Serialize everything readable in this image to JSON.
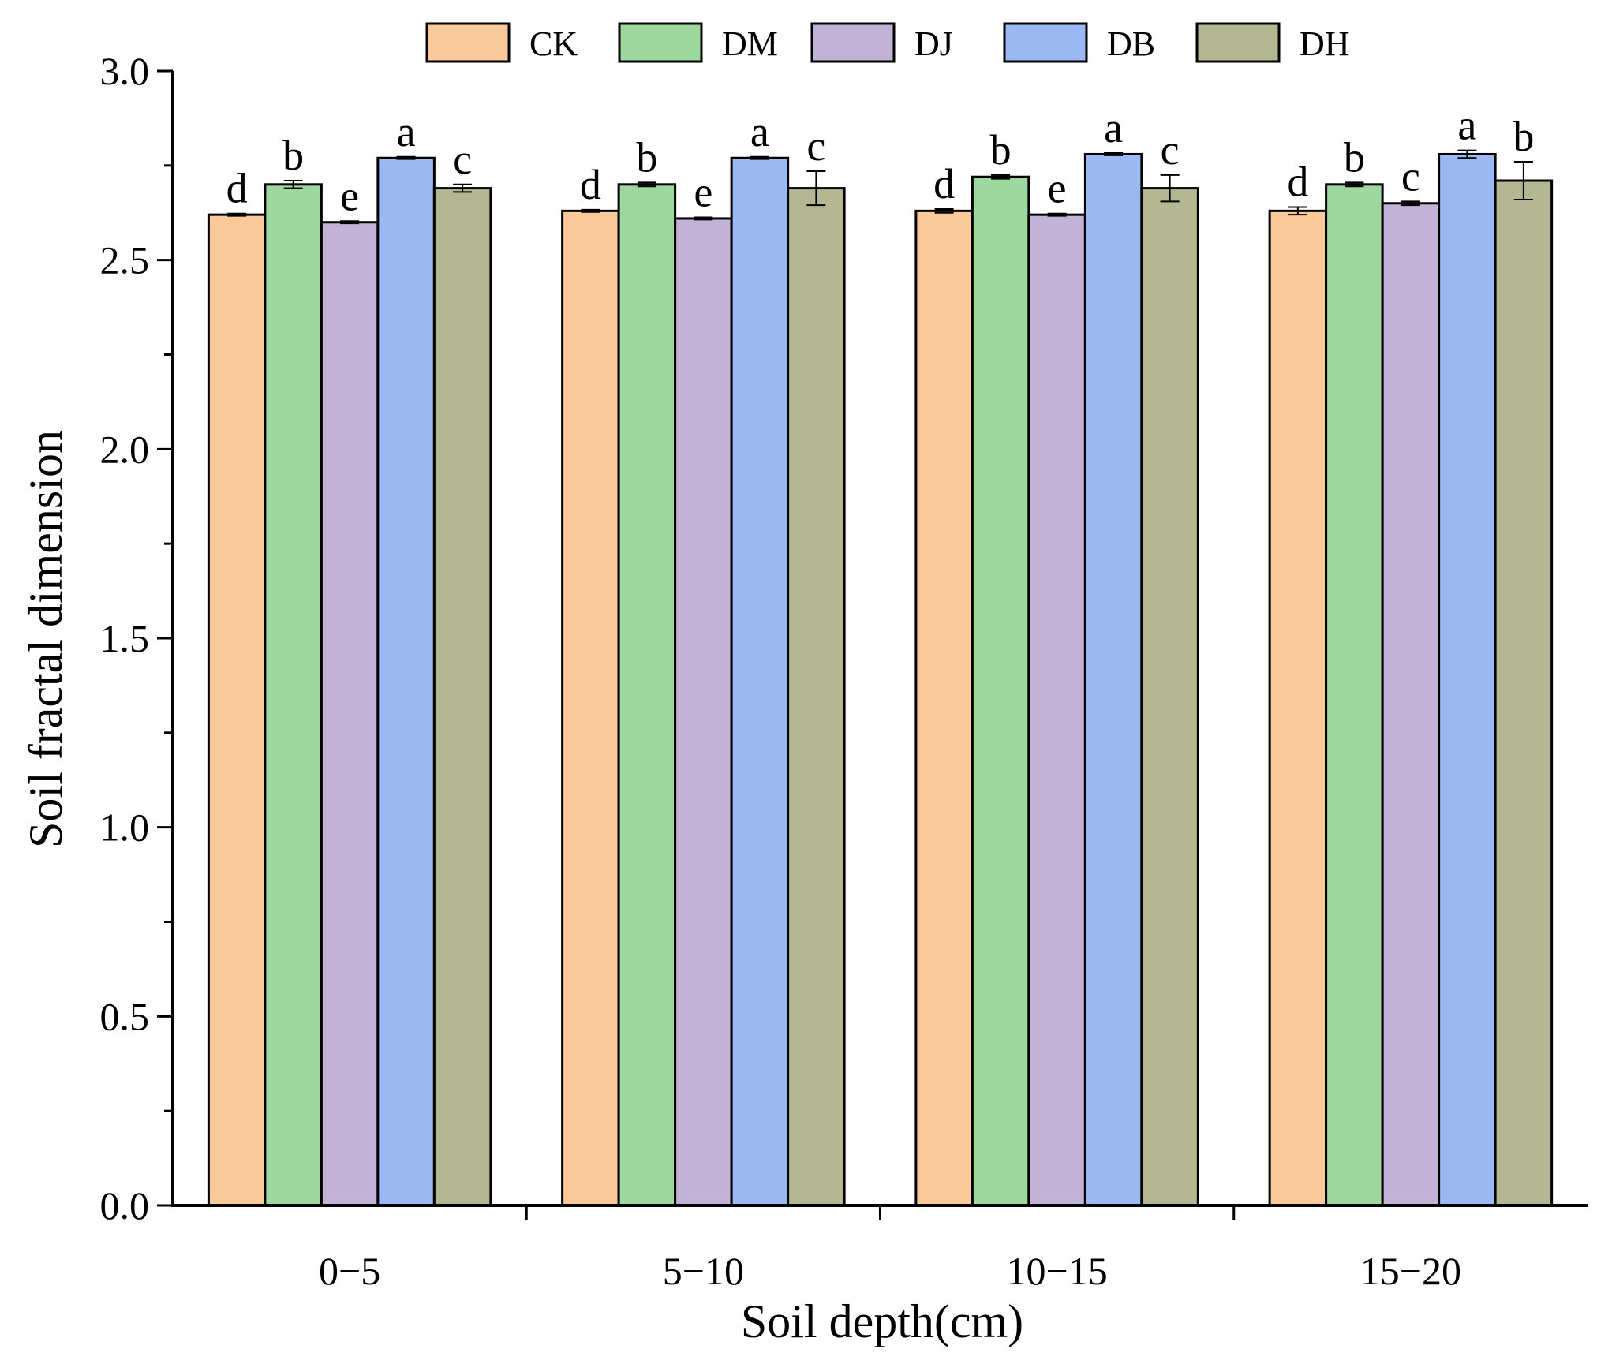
{
  "chart_data": {
    "type": "bar",
    "title": "",
    "xlabel": "Soil depth(cm)",
    "ylabel": "Soil fractal dimension",
    "ylim": [
      0,
      3.0
    ],
    "yticks": [
      "0.0",
      "0.5",
      "1.0",
      "1.5",
      "2.0",
      "2.5",
      "3.0"
    ],
    "categories": [
      "0−5",
      "5−10",
      "10−15",
      "15−20"
    ],
    "legend_position": "top",
    "series": [
      {
        "name": "CK",
        "color": "#F9C999",
        "values": [
          2.62,
          2.63,
          2.63,
          2.63
        ],
        "errors": [
          0.003,
          0.003,
          0.005,
          0.01
        ],
        "labels": [
          "d",
          "d",
          "d",
          "d"
        ]
      },
      {
        "name": "DM",
        "color": "#9ED89E",
        "values": [
          2.7,
          2.7,
          2.72,
          2.7
        ],
        "errors": [
          0.01,
          0.005,
          0.005,
          0.005
        ],
        "labels": [
          "b",
          "b",
          "b",
          "b"
        ]
      },
      {
        "name": "DJ",
        "color": "#C2B2D8",
        "values": [
          2.6,
          2.61,
          2.62,
          2.65
        ],
        "errors": [
          0.003,
          0.003,
          0.003,
          0.005
        ],
        "labels": [
          "e",
          "e",
          "e",
          "c"
        ]
      },
      {
        "name": "DB",
        "color": "#9AB9F2",
        "values": [
          2.77,
          2.77,
          2.78,
          2.78
        ],
        "errors": [
          0.003,
          0.003,
          0.003,
          0.01
        ],
        "labels": [
          "a",
          "a",
          "a",
          "a"
        ]
      },
      {
        "name": "DH",
        "color": "#B3B893",
        "values": [
          2.69,
          2.69,
          2.69,
          2.71
        ],
        "errors": [
          0.01,
          0.045,
          0.035,
          0.05
        ],
        "labels": [
          "c",
          "c",
          "c",
          "b"
        ]
      }
    ]
  }
}
